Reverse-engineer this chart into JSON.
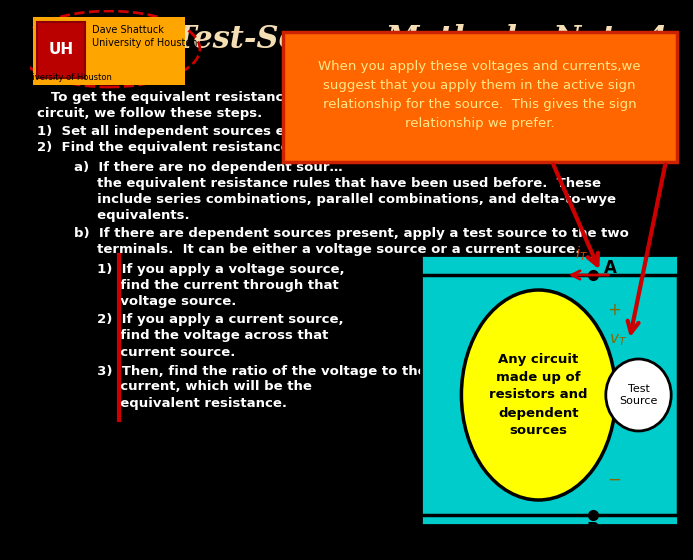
{
  "title": "Test-Source Method – Note 4",
  "title_color": "#F5DEB3",
  "bg_color": "#000000",
  "main_text_color": "#FFFFFF",
  "logo_bg": "#FFA500",
  "logo_text1": "Dave Shattuck",
  "logo_text2": "University of Houston",
  "logo_text3": "© University of Houston",
  "orange_box_text": "When you apply these voltages and currents,we\nsuggest that you apply them in the active sign\nrelationship for the source.  This gives the sign\nrelationship we prefer.",
  "orange_box_color": "#FF6600",
  "circuit_bg": "#00CCCC",
  "yellow_blob_color": "#FFFF00",
  "test_source_circle_color": "#FFFFFF",
  "red_color": "#CC0000",
  "body_text_color": "#FFFFFF",
  "body_fontsize": 9.5,
  "title_fontsize": 22
}
